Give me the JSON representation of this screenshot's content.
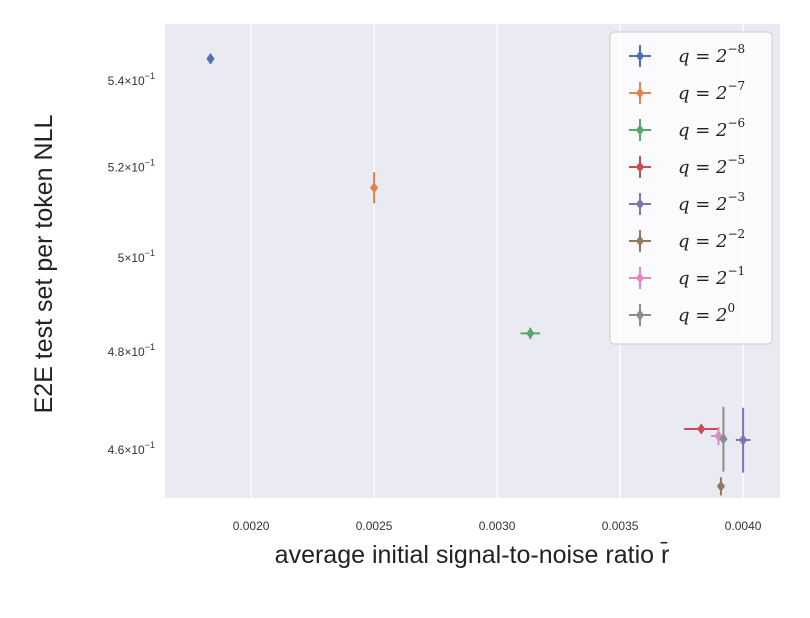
{
  "chart_data": {
    "type": "scatter",
    "xlabel": "average initial signal-to-noise ratio r̄",
    "ylabel": "E2E test set per token NLL",
    "xlim": [
      0.00165,
      0.00415
    ],
    "ylim": [
      0.4505,
      0.5535
    ],
    "y_scale": "log",
    "grid": "x-only",
    "legend_placement": "top-right",
    "xticks": [
      {
        "value": 0.002,
        "label": "0.0020"
      },
      {
        "value": 0.0025,
        "label": "0.0025"
      },
      {
        "value": 0.003,
        "label": "0.0030"
      },
      {
        "value": 0.0035,
        "label": "0.0035"
      },
      {
        "value": 0.004,
        "label": "0.0040"
      }
    ],
    "yticks": [
      {
        "value": 0.46,
        "mantissa": "4.6",
        "base": "10",
        "exp": "−1"
      },
      {
        "value": 0.48,
        "mantissa": "4.8",
        "base": "10",
        "exp": "−1"
      },
      {
        "value": 0.5,
        "mantissa": "5",
        "base": "10",
        "exp": "−1"
      },
      {
        "value": 0.52,
        "mantissa": "5.2",
        "base": "10",
        "exp": "−1"
      },
      {
        "value": 0.54,
        "mantissa": "5.4",
        "base": "10",
        "exp": "−1"
      }
    ],
    "series": [
      {
        "name_base": "q = 2",
        "name_exp": "−8",
        "color": "#4c72b0",
        "x": 0.001835,
        "y": 0.5452,
        "xerr": 1e-05,
        "yerr": 0.0012
      },
      {
        "name_base": "q = 2",
        "name_exp": "−7",
        "color": "#dd8452",
        "x": 0.0025,
        "y": 0.5155,
        "xerr": 1e-05,
        "yerr": 0.0035
      },
      {
        "name_base": "q = 2",
        "name_exp": "−6",
        "color": "#55a868",
        "x": 0.003135,
        "y": 0.4839,
        "xerr": 4e-05,
        "yerr": 0.0012
      },
      {
        "name_base": "q = 2",
        "name_exp": "−5",
        "color": "#c44e52",
        "x": 0.00383,
        "y": 0.4642,
        "xerr": 7e-05,
        "yerr": 0.0005
      },
      {
        "name_base": "q = 2",
        "name_exp": "−3",
        "color": "#8172b3",
        "x": 0.004,
        "y": 0.462,
        "xerr": 3e-05,
        "yerr": 0.0065
      },
      {
        "name_base": "q = 2",
        "name_exp": "−2",
        "color": "#937860",
        "x": 0.00391,
        "y": 0.4528,
        "xerr": 8e-06,
        "yerr": 0.0018
      },
      {
        "name_base": "q = 2",
        "name_exp": "−1",
        "color": "#da8bc3",
        "x": 0.0039,
        "y": 0.4628,
        "xerr": 3e-05,
        "yerr": 0.0018
      },
      {
        "name_base": "q = 2",
        "name_exp": "0",
        "color": "#8c8c8c",
        "x": 0.00392,
        "y": 0.4622,
        "xerr": 1.5e-05,
        "yerr": 0.0065
      }
    ]
  },
  "colors": {
    "plot_background": "#eaeaf2",
    "grid": "#ffffff"
  }
}
